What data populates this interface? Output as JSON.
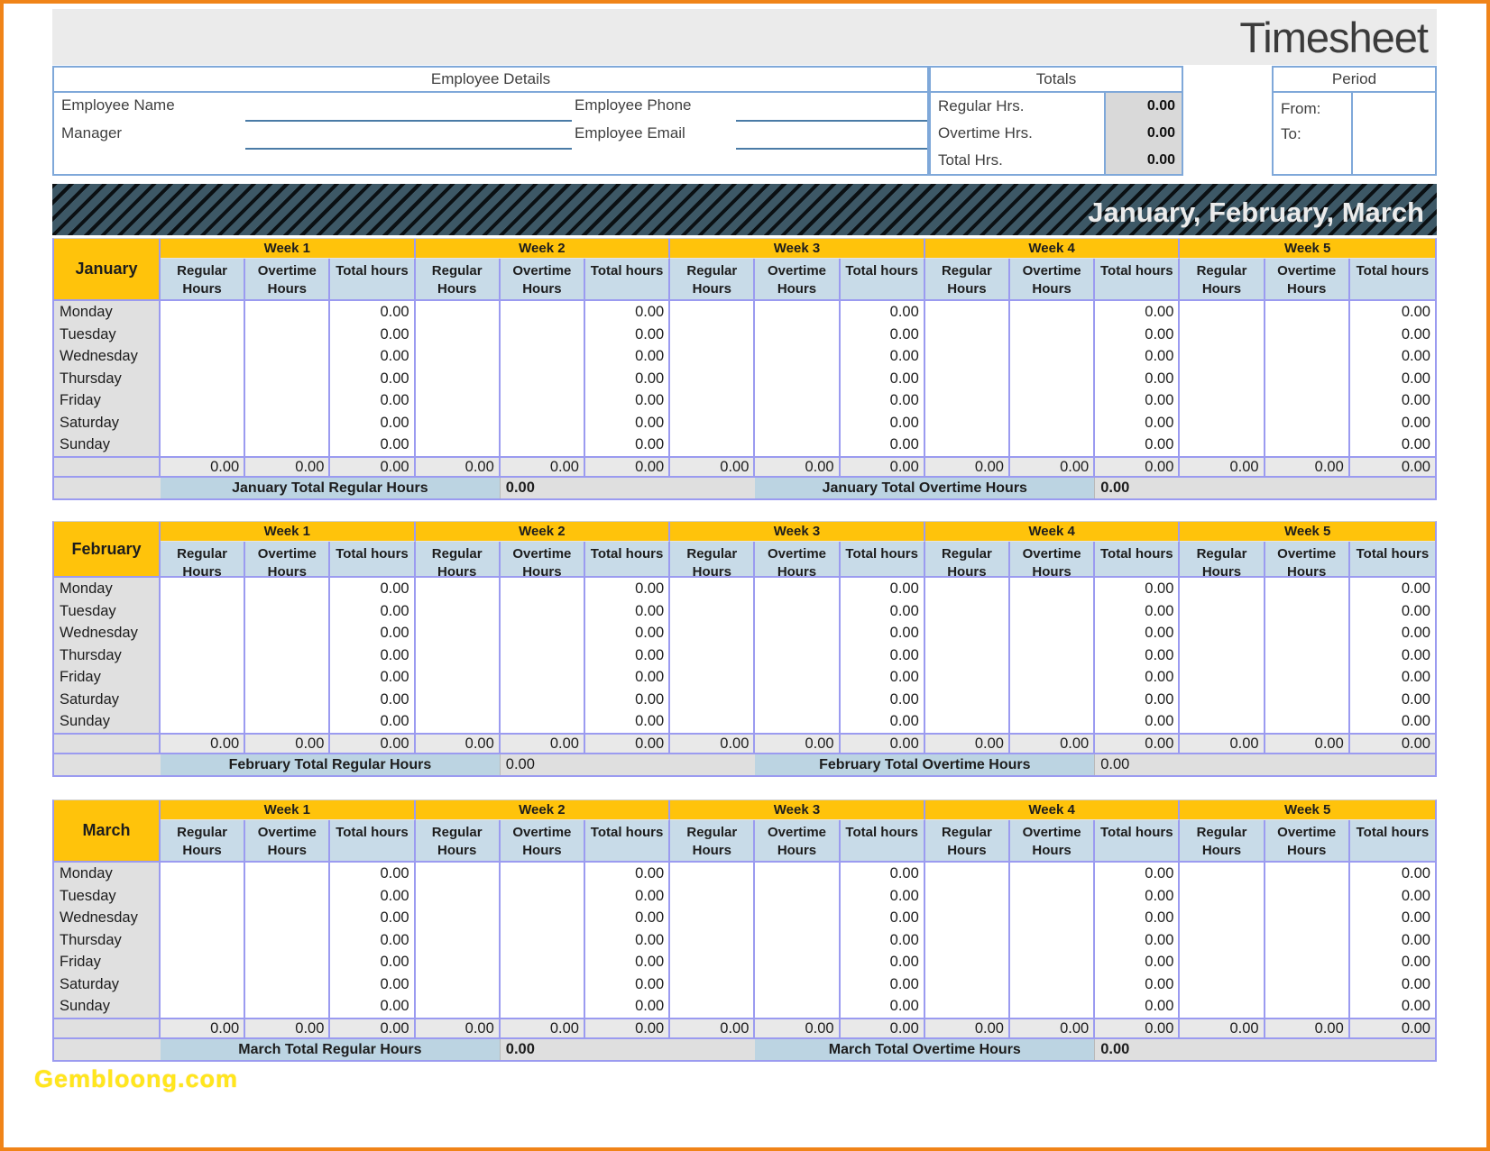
{
  "title": "Timesheet",
  "watermark": "Gembloong.com",
  "banner": {
    "title": "January, February, March"
  },
  "employee_details": {
    "header": "Employee Details",
    "name_label": "Employee Name",
    "manager_label": "Manager",
    "phone_label": "Employee Phone",
    "email_label": "Employee Email",
    "name_value": "",
    "manager_value": "",
    "phone_value": "",
    "email_value": ""
  },
  "totals": {
    "header": "Totals",
    "rows": [
      {
        "label": "Regular Hrs.",
        "value": "0.00"
      },
      {
        "label": "Overtime Hrs.",
        "value": "0.00"
      },
      {
        "label": "Total Hrs.",
        "value": "0.00"
      }
    ]
  },
  "period": {
    "header": "Period",
    "from_label": "From:",
    "to_label": "To:",
    "from_value": "",
    "to_value": ""
  },
  "months": [
    {
      "name": "January",
      "weeks": [
        "Week 1",
        "Week 2",
        "Week 3",
        "Week 4",
        "Week 5"
      ],
      "columns": [
        "Regular Hours",
        "Overtime Hours",
        "Total hours"
      ],
      "days": [
        "Monday",
        "Tuesday",
        "Wednesday",
        "Thursday",
        "Friday",
        "Saturday",
        "Sunday"
      ],
      "day_totals": [
        "0.00",
        "0.00",
        "0.00",
        "0.00",
        "0.00",
        "0.00",
        "0.00"
      ],
      "week_totals": [
        "0.00",
        "0.00",
        "0.00",
        "0.00",
        "0.00",
        "0.00",
        "0.00",
        "0.00",
        "0.00",
        "0.00",
        "0.00",
        "0.00",
        "0.00",
        "0.00",
        "0.00"
      ],
      "total_regular_label": "January Total Regular Hours",
      "total_regular_value": "0.00",
      "total_overtime_label": "January Total Overtime Hours",
      "total_overtime_value": "0.00",
      "totals_bold": true
    },
    {
      "name": "February",
      "weeks": [
        "Week 1",
        "Week 2",
        "Week 3",
        "Week 4",
        "Week 5"
      ],
      "columns": [
        "Regular Hours",
        "Overtime Hours",
        "Total hours"
      ],
      "days": [
        "Monday",
        "Tuesday",
        "Wednesday",
        "Thursday",
        "Friday",
        "Saturday",
        "Sunday"
      ],
      "day_totals": [
        "0.00",
        "0.00",
        "0.00",
        "0.00",
        "0.00",
        "0.00",
        "0.00"
      ],
      "week_totals": [
        "0.00",
        "0.00",
        "0.00",
        "0.00",
        "0.00",
        "0.00",
        "0.00",
        "0.00",
        "0.00",
        "0.00",
        "0.00",
        "0.00",
        "0.00",
        "0.00",
        "0.00"
      ],
      "total_regular_label": "February Total Regular Hours",
      "total_regular_value": "0.00",
      "total_overtime_label": "February Total Overtime Hours",
      "total_overtime_value": "0.00",
      "totals_bold": false
    },
    {
      "name": "March",
      "weeks": [
        "Week 1",
        "Week 2",
        "Week 3",
        "Week 4",
        "Week 5"
      ],
      "columns": [
        "Regular Hours",
        "Overtime Hours",
        "Total hours"
      ],
      "days": [
        "Monday",
        "Tuesday",
        "Wednesday",
        "Thursday",
        "Friday",
        "Saturday",
        "Sunday"
      ],
      "day_totals": [
        "0.00",
        "0.00",
        "0.00",
        "0.00",
        "0.00",
        "0.00",
        "0.00"
      ],
      "week_totals": [
        "0.00",
        "0.00",
        "0.00",
        "0.00",
        "0.00",
        "0.00",
        "0.00",
        "0.00",
        "0.00",
        "0.00",
        "0.00",
        "0.00",
        "0.00",
        "0.00",
        "0.00"
      ],
      "total_regular_label": "March Total Regular Hours",
      "total_regular_value": "0.00",
      "total_overtime_label": "March Total Overtime Hours",
      "total_overtime_value": "0.00",
      "totals_bold": true
    }
  ]
}
